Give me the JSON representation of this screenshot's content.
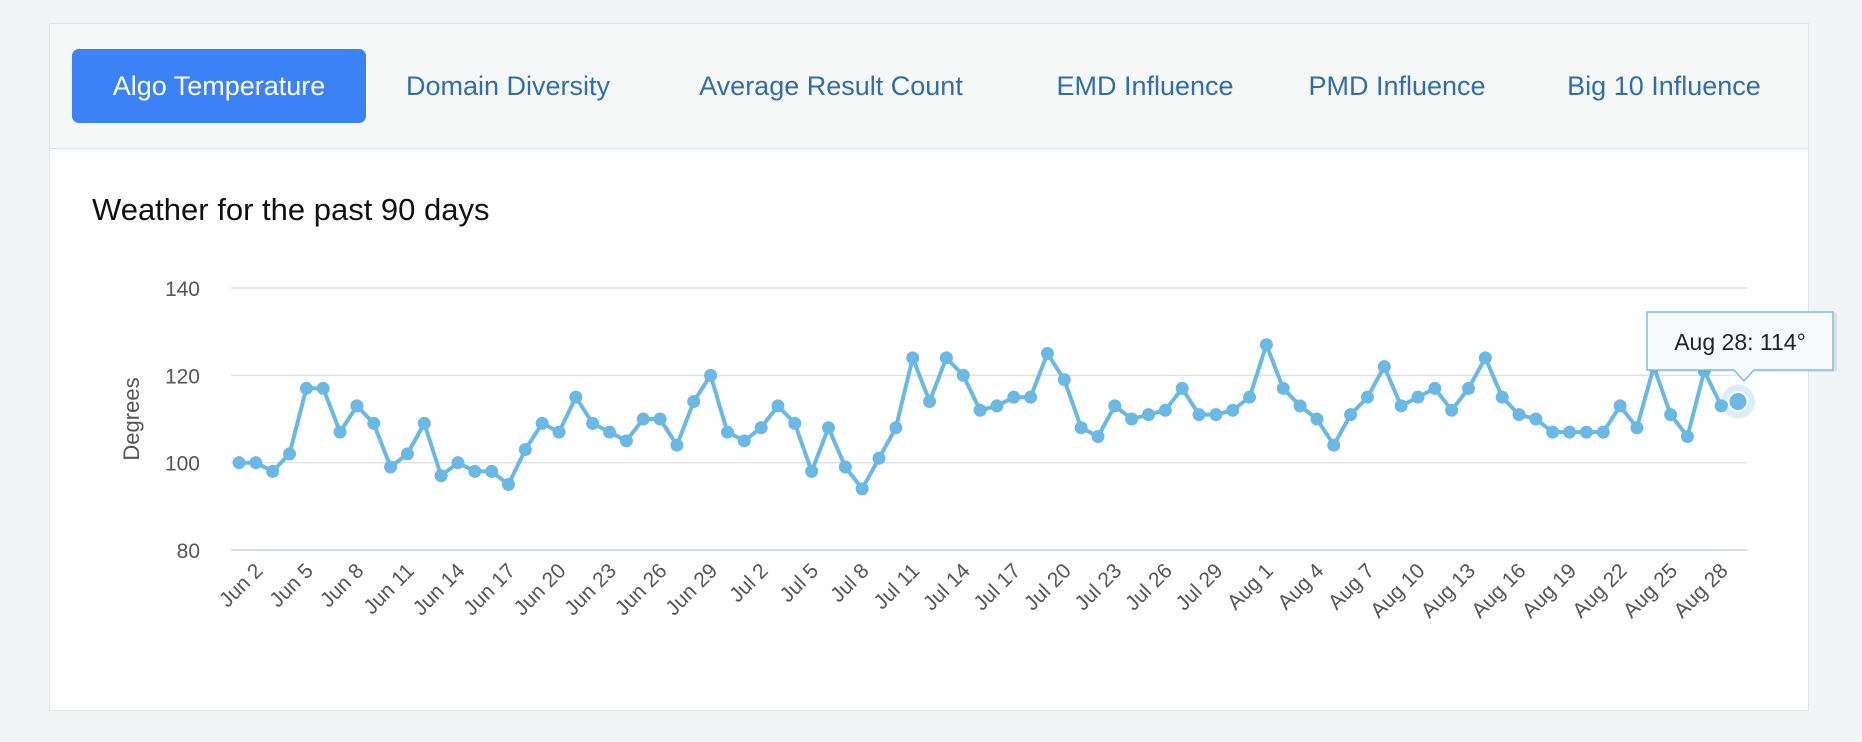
{
  "tabs": [
    {
      "label": "Algo Temperature",
      "active": true
    },
    {
      "label": "Domain Diversity",
      "active": false
    },
    {
      "label": "Average Result Count",
      "active": false
    },
    {
      "label": "EMD Influence",
      "active": false
    },
    {
      "label": "PMD Influence",
      "active": false
    },
    {
      "label": "Big 10 Influence",
      "active": false
    }
  ],
  "colors": {
    "accent": "#3b82f6",
    "line": "#6ab8e4",
    "grid": "#dfe3e6",
    "axis_text": "#555555"
  },
  "chart_data": {
    "type": "line",
    "title": "Weather for the past 90 days",
    "xlabel": "",
    "ylabel": "Degrees",
    "ylim": [
      80,
      140
    ],
    "yticks": [
      80,
      100,
      120,
      140
    ],
    "grid": true,
    "x_labels": [
      "Jun 2",
      "Jun 5",
      "Jun 8",
      "Jun 11",
      "Jun 14",
      "Jun 17",
      "Jun 20",
      "Jun 23",
      "Jun 26",
      "Jun 29",
      "Jul 2",
      "Jul 5",
      "Jul 8",
      "Jul 11",
      "Jul 14",
      "Jul 17",
      "Jul 20",
      "Jul 23",
      "Jul 26",
      "Jul 29",
      "Aug 1",
      "Aug 4",
      "Aug 7",
      "Aug 10",
      "Aug 13",
      "Aug 16",
      "Aug 19",
      "Aug 22",
      "Aug 25",
      "Aug 28"
    ],
    "series": [
      {
        "name": "Algo Temperature",
        "values": [
          100,
          100,
          98,
          102,
          117,
          117,
          107,
          113,
          109,
          99,
          102,
          109,
          97,
          100,
          98,
          98,
          95,
          103,
          109,
          107,
          115,
          109,
          107,
          105,
          110,
          110,
          104,
          114,
          120,
          107,
          105,
          108,
          113,
          109,
          98,
          108,
          99,
          94,
          101,
          108,
          124,
          114,
          124,
          120,
          112,
          113,
          115,
          115,
          125,
          119,
          108,
          106,
          113,
          110,
          111,
          112,
          117,
          111,
          111,
          112,
          115,
          127,
          117,
          113,
          110,
          104,
          111,
          115,
          122,
          113,
          115,
          117,
          112,
          117,
          124,
          115,
          111,
          110,
          107,
          107,
          107,
          107,
          113,
          108,
          122,
          111,
          106,
          121,
          113,
          114
        ]
      }
    ],
    "tooltip": {
      "text": "Aug 28: 114°",
      "index": 89
    }
  }
}
